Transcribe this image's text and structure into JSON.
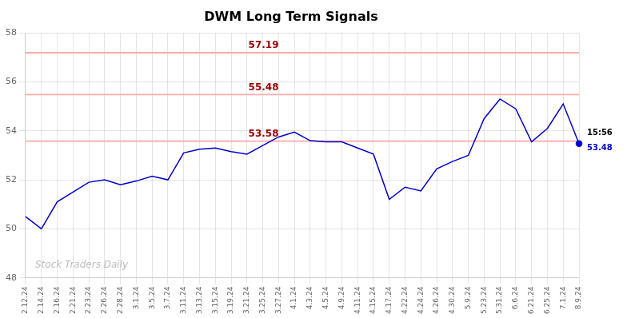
{
  "chart_data": {
    "type": "line",
    "title": "DWM Long Term Signals",
    "categories": [
      "2.12.24",
      "2.14.24",
      "2.16.24",
      "2.21.24",
      "2.23.24",
      "2.26.24",
      "2.28.24",
      "3.1.24",
      "3.5.24",
      "3.7.24",
      "3.11.24",
      "3.13.24",
      "3.15.24",
      "3.19.24",
      "3.21.24",
      "3.25.24",
      "3.27.24",
      "4.1.24",
      "4.3.24",
      "4.5.24",
      "4.9.24",
      "4.11.24",
      "4.15.24",
      "4.17.24",
      "4.22.24",
      "4.24.24",
      "4.26.24",
      "4.30.24",
      "5.9.24",
      "5.23.24",
      "5.31.24",
      "6.6.24",
      "6.21.24",
      "6.25.24",
      "7.1.24",
      "8.9.24"
    ],
    "values": [
      50.5,
      50.0,
      51.1,
      51.5,
      51.9,
      52.0,
      51.8,
      51.95,
      52.15,
      52.0,
      53.1,
      53.25,
      53.3,
      53.15,
      53.05,
      53.4,
      53.75,
      53.95,
      53.6,
      53.55,
      53.55,
      53.3,
      53.05,
      51.2,
      51.7,
      51.55,
      52.45,
      52.75,
      53.0,
      54.5,
      55.3,
      54.9,
      53.55,
      54.1,
      55.1,
      53.48
    ],
    "color": "#0000cc",
    "reference_lines": [
      {
        "value": 57.19,
        "label": "57.19",
        "color": "#ffaaaa",
        "label_color": "#990000"
      },
      {
        "value": 55.48,
        "label": "55.48",
        "color": "#ffaaaa",
        "label_color": "#990000"
      },
      {
        "value": 53.58,
        "label": "53.58",
        "color": "#ffaaaa",
        "label_color": "#990000"
      }
    ],
    "annotations": [
      {
        "text": "15:56",
        "color": "#000000"
      },
      {
        "text": "53.48",
        "color": "#0000cc"
      }
    ],
    "watermark": "Stock Traders Daily",
    "watermark_color": "#bbbbbb",
    "ylim": [
      48,
      58
    ],
    "yticks": [
      48,
      50,
      52,
      54,
      56,
      58
    ],
    "grid": true
  }
}
